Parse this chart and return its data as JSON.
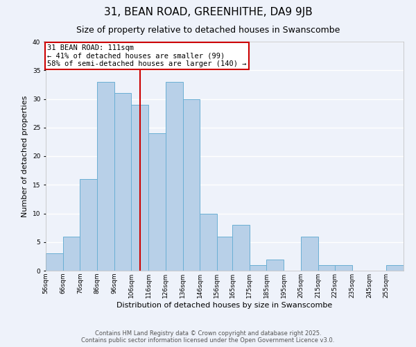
{
  "title": "31, BEAN ROAD, GREENHITHE, DA9 9JB",
  "subtitle": "Size of property relative to detached houses in Swanscombe",
  "xlabel": "Distribution of detached houses by size in Swanscombe",
  "ylabel": "Number of detached properties",
  "bin_labels": [
    "56sqm",
    "66sqm",
    "76sqm",
    "86sqm",
    "96sqm",
    "106sqm",
    "116sqm",
    "126sqm",
    "136sqm",
    "146sqm",
    "156sqm",
    "165sqm",
    "175sqm",
    "185sqm",
    "195sqm",
    "205sqm",
    "215sqm",
    "225sqm",
    "235sqm",
    "245sqm",
    "255sqm"
  ],
  "bin_edges": [
    56,
    66,
    76,
    86,
    96,
    106,
    116,
    126,
    136,
    146,
    156,
    165,
    175,
    185,
    195,
    205,
    215,
    225,
    235,
    245,
    255,
    265
  ],
  "counts": [
    3,
    6,
    16,
    33,
    31,
    29,
    24,
    33,
    30,
    10,
    6,
    8,
    1,
    2,
    0,
    6,
    1,
    1,
    0,
    0,
    1
  ],
  "bar_color": "#b8d0e8",
  "bar_edge_color": "#6aafd4",
  "vline_x": 111,
  "vline_color": "#cc0000",
  "annotation_line1": "31 BEAN ROAD: 111sqm",
  "annotation_line2": "← 41% of detached houses are smaller (99)",
  "annotation_line3": "58% of semi-detached houses are larger (140) →",
  "annotation_box_color": "#cc0000",
  "ylim": [
    0,
    40
  ],
  "yticks": [
    0,
    5,
    10,
    15,
    20,
    25,
    30,
    35,
    40
  ],
  "background_color": "#eef2fa",
  "grid_color": "#ffffff",
  "footer_line1": "Contains HM Land Registry data © Crown copyright and database right 2025.",
  "footer_line2": "Contains public sector information licensed under the Open Government Licence v3.0.",
  "title_fontsize": 11,
  "subtitle_fontsize": 9,
  "axis_label_fontsize": 8,
  "tick_fontsize": 6.5,
  "annotation_fontsize": 7.5,
  "footer_fontsize": 6
}
